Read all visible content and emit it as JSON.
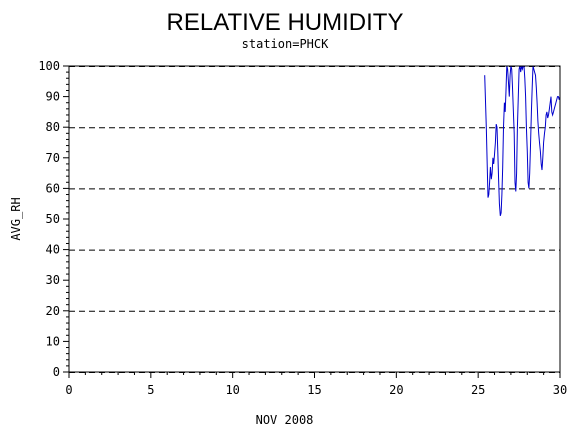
{
  "chart_data": {
    "type": "line",
    "title": "RELATIVE HUMIDITY",
    "subtitle": "station=PHCK",
    "xlabel": "NOV 2008",
    "ylabel": "AVG_RH",
    "xlim": [
      0,
      30
    ],
    "ylim": [
      0,
      100
    ],
    "x_ticks": [
      "0",
      "5",
      "10",
      "15",
      "20",
      "25",
      "30"
    ],
    "y_ticks": [
      "0",
      "10",
      "20",
      "30",
      "40",
      "50",
      "60",
      "70",
      "80",
      "90",
      "100"
    ],
    "grid_y": [
      0,
      20,
      40,
      60,
      80,
      100
    ],
    "line_color": "#0000cc",
    "series": [
      {
        "x": [
          25.4,
          25.5,
          25.6,
          25.65,
          25.7,
          25.75,
          25.8,
          25.85,
          25.9,
          25.95,
          26.0,
          26.05,
          26.1,
          26.15,
          26.2,
          26.25,
          26.3,
          26.35,
          26.4,
          26.45,
          26.5,
          26.55,
          26.6,
          26.65,
          26.7,
          26.75,
          26.8,
          26.85,
          26.9,
          26.95,
          27.0,
          27.05,
          27.1,
          27.15,
          27.2,
          27.25,
          27.3,
          27.35,
          27.4,
          27.45,
          27.5,
          27.55,
          27.6,
          27.65,
          27.7,
          27.75,
          27.8,
          27.85,
          27.9,
          27.95,
          28.0,
          28.05,
          28.1,
          28.15,
          28.2,
          28.25,
          28.3,
          28.35,
          28.4,
          28.45,
          28.5,
          28.55,
          28.6,
          28.65,
          28.7,
          28.75,
          28.8,
          28.85,
          28.9,
          28.95,
          29.0,
          29.05,
          29.1,
          29.15,
          29.2,
          29.25,
          29.3,
          29.35,
          29.4,
          29.45,
          29.5,
          29.55,
          29.6,
          29.65,
          29.7,
          29.75,
          29.8,
          29.85,
          29.9,
          29.95,
          30.0,
          30.05
        ],
        "y": [
          97,
          80,
          57,
          58,
          62,
          67,
          63,
          65,
          70,
          68,
          71,
          75,
          81,
          80,
          72,
          63,
          55,
          51,
          52,
          58,
          67,
          80,
          88,
          85,
          92,
          100,
          99,
          95,
          90,
          97,
          100,
          99,
          93,
          85,
          78,
          62,
          59,
          65,
          80,
          90,
          99,
          100,
          98,
          100,
          99,
          100,
          100,
          96,
          90,
          80,
          72,
          62,
          60,
          65,
          74,
          85,
          93,
          100,
          99,
          98,
          97,
          93,
          88,
          82,
          78,
          75,
          72,
          68,
          66,
          70,
          75,
          78,
          80,
          84,
          85,
          83,
          84,
          86,
          88,
          90,
          85,
          84,
          85,
          86,
          87,
          88,
          89,
          90,
          90,
          89,
          90,
          90
        ]
      }
    ]
  }
}
